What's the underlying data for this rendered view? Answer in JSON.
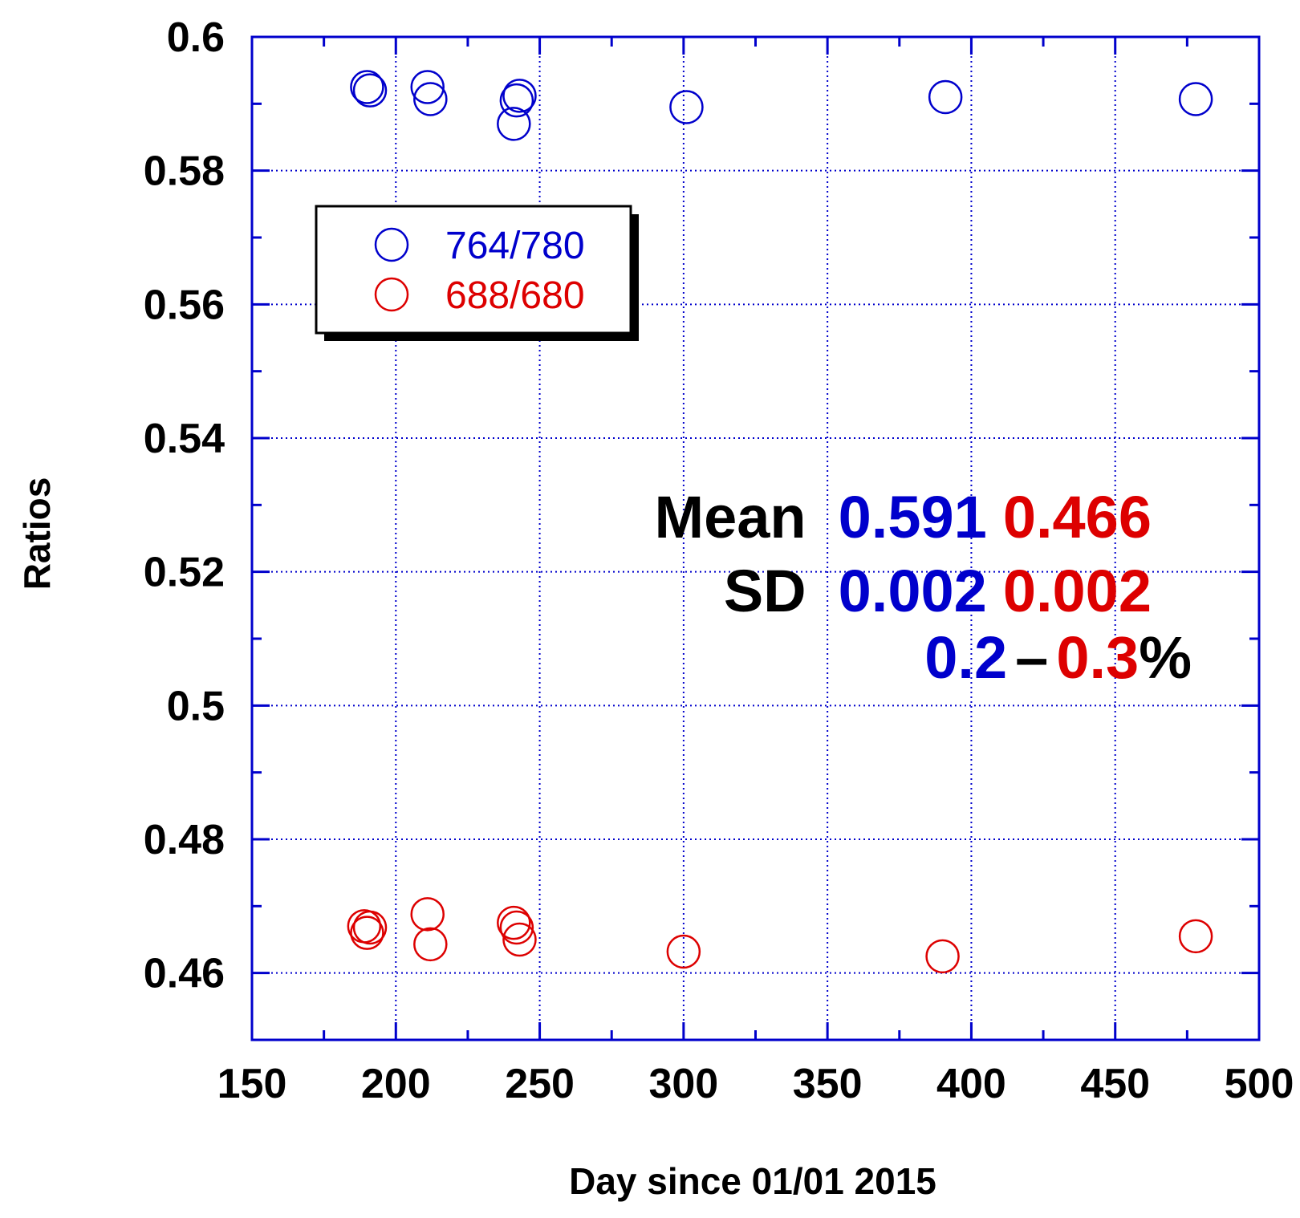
{
  "chart_data": {
    "type": "scatter",
    "xlabel": "Day since 01/01 2015",
    "ylabel": "Ratios",
    "xlim": [
      150,
      500
    ],
    "ylim": [
      0.45,
      0.6
    ],
    "x_ticks": [
      150,
      200,
      250,
      300,
      350,
      400,
      450,
      500
    ],
    "x_tick_labels": [
      "150",
      "200",
      "250",
      "300",
      "350",
      "400",
      "450",
      "500"
    ],
    "y_ticks": [
      0.46,
      0.48,
      0.5,
      0.52,
      0.54,
      0.56,
      0.58,
      0.6
    ],
    "y_tick_labels": [
      "0.46",
      "0.48",
      "0.5",
      "0.52",
      "0.54",
      "0.56",
      "0.58",
      "0.6"
    ],
    "grid": true,
    "marker": "open-circle",
    "legend_position": "top-left",
    "series": [
      {
        "name": "764/780",
        "color": "#0000cc",
        "points": [
          {
            "x": 190,
            "y": 0.5925
          },
          {
            "x": 191,
            "y": 0.592
          },
          {
            "x": 211,
            "y": 0.5925
          },
          {
            "x": 212,
            "y": 0.5907
          },
          {
            "x": 241,
            "y": 0.587
          },
          {
            "x": 242,
            "y": 0.5905
          },
          {
            "x": 243,
            "y": 0.5912
          },
          {
            "x": 301,
            "y": 0.5895
          },
          {
            "x": 391,
            "y": 0.591
          },
          {
            "x": 478,
            "y": 0.5907
          }
        ]
      },
      {
        "name": "688/680",
        "color": "#dd0000",
        "points": [
          {
            "x": 189,
            "y": 0.467
          },
          {
            "x": 190,
            "y": 0.466
          },
          {
            "x": 191,
            "y": 0.4668
          },
          {
            "x": 211,
            "y": 0.4688
          },
          {
            "x": 212,
            "y": 0.4643
          },
          {
            "x": 241,
            "y": 0.4675
          },
          {
            "x": 242,
            "y": 0.4668
          },
          {
            "x": 243,
            "y": 0.465
          },
          {
            "x": 300,
            "y": 0.4632
          },
          {
            "x": 390,
            "y": 0.4625
          },
          {
            "x": 478,
            "y": 0.4655
          }
        ]
      }
    ],
    "annotations": {
      "mean_label": "Mean",
      "mean_values": [
        "0.591",
        "0.466"
      ],
      "sd_label": "SD",
      "sd_values": [
        "0.002",
        "0.002"
      ],
      "pct": [
        "0.2",
        "–",
        "0.3",
        "%"
      ]
    }
  },
  "colors": {
    "frame": "#0000cc",
    "grid": "#0000cc",
    "series_blue": "#0000cc",
    "series_red": "#dd0000",
    "text": "#000000"
  }
}
